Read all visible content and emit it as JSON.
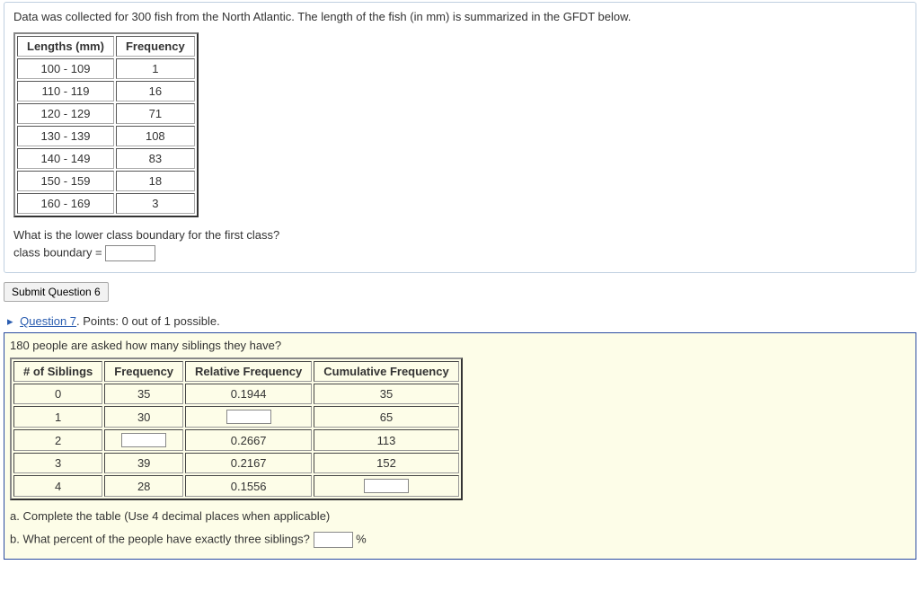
{
  "q6": {
    "prompt": "Data was collected for 300 fish from the North Atlantic. The length of the fish (in mm) is summarized in the GFDT below.",
    "table": {
      "headers": [
        "Lengths (mm)",
        "Frequency"
      ],
      "rows": [
        [
          "100 - 109",
          "1"
        ],
        [
          "110 - 119",
          "16"
        ],
        [
          "120 - 129",
          "71"
        ],
        [
          "130 - 139",
          "108"
        ],
        [
          "140 - 149",
          "83"
        ],
        [
          "150 - 159",
          "18"
        ],
        [
          "160 - 169",
          "3"
        ]
      ]
    },
    "sub_question": "What is the lower class boundary for the first class?",
    "answer_label": "class boundary =",
    "submit_label": "Submit Question 6"
  },
  "q7": {
    "header_link": "Question 7",
    "header_tail": ". Points: 0 out of 1 possible.",
    "prompt": "180 people are asked how many siblings they have?",
    "table": {
      "headers": [
        "# of Siblings",
        "Frequency",
        "Relative Frequency",
        "Cumulative Frequency"
      ],
      "rows": [
        {
          "sib": "0",
          "freq": "35",
          "rel": "0.1944",
          "cum": "35"
        },
        {
          "sib": "1",
          "freq": "30",
          "rel_input": true,
          "cum": "65"
        },
        {
          "sib": "2",
          "freq_input": true,
          "rel": "0.2667",
          "cum": "113"
        },
        {
          "sib": "3",
          "freq": "39",
          "rel": "0.2167",
          "cum": "152"
        },
        {
          "sib": "4",
          "freq": "28",
          "rel": "0.1556",
          "cum_input": true
        }
      ]
    },
    "part_a": "a. Complete the table (Use 4 decimal places when applicable)",
    "part_b_pre": "b.  What percent of the people have exactly three siblings?",
    "percent_sign": "%"
  }
}
